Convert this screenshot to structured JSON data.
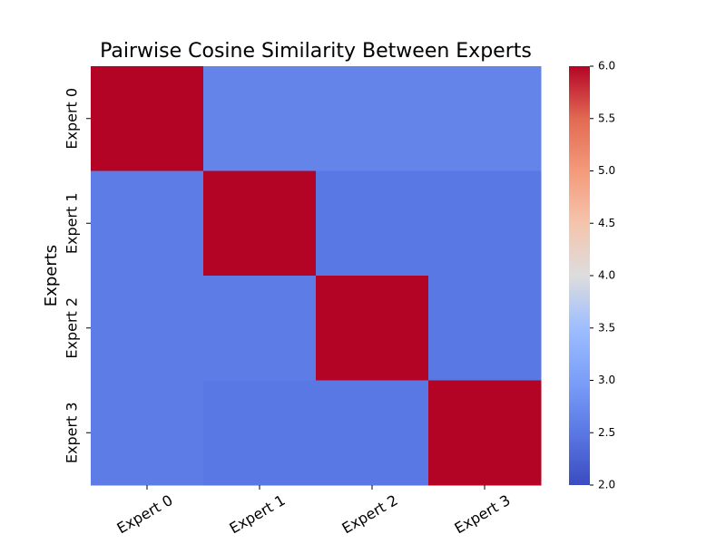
{
  "chart_data": {
    "type": "heatmap",
    "title": "Pairwise Cosine Similarity Between Experts",
    "xlabel": "",
    "ylabel": "Experts",
    "x_categories": [
      "Expert 0",
      "Expert 1",
      "Expert 2",
      "Expert 3"
    ],
    "y_categories": [
      "Expert 0",
      "Expert 1",
      "Expert 2",
      "Expert 3"
    ],
    "values": [
      [
        6.0,
        2.65,
        2.65,
        2.65
      ],
      [
        2.55,
        6.0,
        2.5,
        2.5
      ],
      [
        2.55,
        2.55,
        6.0,
        2.5
      ],
      [
        2.55,
        2.5,
        2.5,
        6.0
      ]
    ],
    "colormap": "coolwarm",
    "vmin": 2.0,
    "vmax": 6.0,
    "colorbar_ticks": [
      "2.0",
      "2.5",
      "3.0",
      "3.5",
      "4.0",
      "4.5",
      "5.0",
      "5.5",
      "6.0"
    ],
    "grid": false,
    "colorbar_position": "right"
  }
}
